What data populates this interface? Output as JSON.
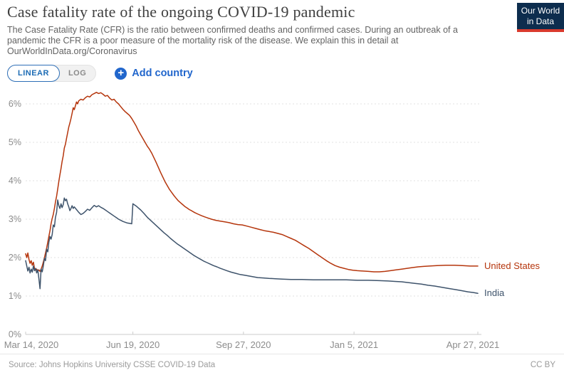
{
  "header": {
    "title": "Case fatality rate of the ongoing COVID-19 pandemic",
    "subtitle": "The Case Fatality Rate (CFR) is the ratio between confirmed deaths and confirmed cases. During an outbreak of a pandemic the CFR is a poor measure of the mortality risk of the disease. We explain this in detail at OurWorldInData.org/Coronavirus",
    "logo": {
      "line1": "Our World",
      "line2": "in Data",
      "bg_color": "#0d2d4e",
      "accent_color": "#d93a2e"
    }
  },
  "controls": {
    "linear_label": "LINEAR",
    "log_label": "LOG",
    "active_scale": "LINEAR",
    "add_country_label": "Add country",
    "plus_icon": "+",
    "accent_blue": "#2166cc"
  },
  "footer": {
    "source": "Source: Johns Hopkins University CSSE COVID-19 Data",
    "license": "CC BY"
  },
  "chart_data": {
    "type": "line",
    "title": "Case fatality rate of the ongoing COVID-19 pandemic",
    "xlabel": "",
    "ylabel": "",
    "grid": "dashed-horizontal",
    "legend_position": "end-of-line",
    "x_axis": {
      "unit": "date (days since Mar 14, 2020)",
      "range_days": [
        0,
        409
      ],
      "ticks": [
        {
          "label": "Mar 14, 2020",
          "day": 0
        },
        {
          "label": "Jun 19, 2020",
          "day": 97
        },
        {
          "label": "Sep 27, 2020",
          "day": 197
        },
        {
          "label": "Jan 5, 2021",
          "day": 297
        },
        {
          "label": "Apr 27, 2021",
          "day": 409
        }
      ]
    },
    "y_axis": {
      "unit": "%",
      "range": [
        0,
        6.5
      ],
      "ticks": [
        {
          "label": "0%",
          "value": 0
        },
        {
          "label": "1%",
          "value": 1
        },
        {
          "label": "2%",
          "value": 2
        },
        {
          "label": "3%",
          "value": 3
        },
        {
          "label": "4%",
          "value": 4
        },
        {
          "label": "5%",
          "value": 5
        },
        {
          "label": "6%",
          "value": 6
        }
      ]
    },
    "series": [
      {
        "name": "United States",
        "color": "#b5350c",
        "peak_value_pct": 6.3,
        "end_value_pct": 1.8,
        "points": [
          [
            0,
            2.1
          ],
          [
            1,
            2.0
          ],
          [
            2,
            2.12
          ],
          [
            3,
            1.95
          ],
          [
            4,
            1.85
          ],
          [
            5,
            1.92
          ],
          [
            6,
            1.8
          ],
          [
            7,
            1.88
          ],
          [
            8,
            1.72
          ],
          [
            9,
            1.67
          ],
          [
            10,
            1.7
          ],
          [
            11,
            1.65
          ],
          [
            12,
            1.68
          ],
          [
            13,
            1.64
          ],
          [
            14,
            1.7
          ],
          [
            15,
            1.78
          ],
          [
            16,
            1.88
          ],
          [
            17,
            2.0
          ],
          [
            18,
            2.12
          ],
          [
            19,
            2.25
          ],
          [
            20,
            2.4
          ],
          [
            21,
            2.55
          ],
          [
            22,
            2.7
          ],
          [
            23,
            2.88
          ],
          [
            24,
            3.02
          ],
          [
            25,
            3.12
          ],
          [
            26,
            3.28
          ],
          [
            27,
            3.45
          ],
          [
            28,
            3.6
          ],
          [
            29,
            3.78
          ],
          [
            30,
            3.98
          ],
          [
            31,
            4.15
          ],
          [
            32,
            4.32
          ],
          [
            33,
            4.5
          ],
          [
            34,
            4.65
          ],
          [
            35,
            4.85
          ],
          [
            36,
            4.95
          ],
          [
            37,
            5.1
          ],
          [
            38,
            5.25
          ],
          [
            39,
            5.4
          ],
          [
            40,
            5.5
          ],
          [
            41,
            5.62
          ],
          [
            42,
            5.75
          ],
          [
            43,
            5.9
          ],
          [
            44,
            5.85
          ],
          [
            45,
            5.95
          ],
          [
            46,
            6.05
          ],
          [
            47,
            6.0
          ],
          [
            48,
            6.08
          ],
          [
            50,
            6.12
          ],
          [
            52,
            6.1
          ],
          [
            54,
            6.16
          ],
          [
            56,
            6.2
          ],
          [
            58,
            6.18
          ],
          [
            60,
            6.24
          ],
          [
            62,
            6.27
          ],
          [
            64,
            6.3
          ],
          [
            66,
            6.27
          ],
          [
            68,
            6.29
          ],
          [
            70,
            6.25
          ],
          [
            72,
            6.2
          ],
          [
            74,
            6.22
          ],
          [
            76,
            6.15
          ],
          [
            78,
            6.1
          ],
          [
            80,
            6.12
          ],
          [
            82,
            6.05
          ],
          [
            84,
            6.0
          ],
          [
            86,
            5.93
          ],
          [
            88,
            5.86
          ],
          [
            90,
            5.8
          ],
          [
            92,
            5.75
          ],
          [
            94,
            5.7
          ],
          [
            96,
            5.62
          ],
          [
            98,
            5.52
          ],
          [
            100,
            5.42
          ],
          [
            102,
            5.3
          ],
          [
            104,
            5.2
          ],
          [
            106,
            5.1
          ],
          [
            108,
            5.0
          ],
          [
            110,
            4.9
          ],
          [
            112,
            4.82
          ],
          [
            114,
            4.72
          ],
          [
            116,
            4.6
          ],
          [
            118,
            4.48
          ],
          [
            120,
            4.35
          ],
          [
            122,
            4.22
          ],
          [
            124,
            4.1
          ],
          [
            126,
            3.98
          ],
          [
            128,
            3.88
          ],
          [
            130,
            3.78
          ],
          [
            132,
            3.7
          ],
          [
            134,
            3.62
          ],
          [
            136,
            3.55
          ],
          [
            138,
            3.48
          ],
          [
            140,
            3.43
          ],
          [
            142,
            3.38
          ],
          [
            144,
            3.33
          ],
          [
            146,
            3.29
          ],
          [
            148,
            3.25
          ],
          [
            150,
            3.22
          ],
          [
            153,
            3.17
          ],
          [
            156,
            3.13
          ],
          [
            159,
            3.09
          ],
          [
            162,
            3.06
          ],
          [
            165,
            3.03
          ],
          [
            168,
            3.0
          ],
          [
            172,
            2.97
          ],
          [
            176,
            2.95
          ],
          [
            180,
            2.93
          ],
          [
            184,
            2.91
          ],
          [
            188,
            2.88
          ],
          [
            192,
            2.86
          ],
          [
            196,
            2.85
          ],
          [
            200,
            2.82
          ],
          [
            204,
            2.79
          ],
          [
            208,
            2.76
          ],
          [
            212,
            2.73
          ],
          [
            216,
            2.7
          ],
          [
            220,
            2.68
          ],
          [
            224,
            2.66
          ],
          [
            228,
            2.63
          ],
          [
            232,
            2.6
          ],
          [
            236,
            2.55
          ],
          [
            240,
            2.5
          ],
          [
            244,
            2.45
          ],
          [
            248,
            2.38
          ],
          [
            252,
            2.31
          ],
          [
            256,
            2.24
          ],
          [
            260,
            2.16
          ],
          [
            264,
            2.08
          ],
          [
            268,
            2.0
          ],
          [
            272,
            1.92
          ],
          [
            276,
            1.85
          ],
          [
            280,
            1.79
          ],
          [
            284,
            1.75
          ],
          [
            288,
            1.72
          ],
          [
            292,
            1.69
          ],
          [
            296,
            1.67
          ],
          [
            300,
            1.66
          ],
          [
            305,
            1.65
          ],
          [
            310,
            1.64
          ],
          [
            315,
            1.63
          ],
          [
            320,
            1.63
          ],
          [
            325,
            1.64
          ],
          [
            330,
            1.66
          ],
          [
            335,
            1.68
          ],
          [
            340,
            1.7
          ],
          [
            345,
            1.72
          ],
          [
            350,
            1.74
          ],
          [
            355,
            1.76
          ],
          [
            360,
            1.77
          ],
          [
            365,
            1.78
          ],
          [
            372,
            1.79
          ],
          [
            380,
            1.8
          ],
          [
            388,
            1.8
          ],
          [
            395,
            1.79
          ],
          [
            402,
            1.78
          ],
          [
            409,
            1.78
          ]
        ]
      },
      {
        "name": "India",
        "color": "#3e536b",
        "peak_value_pct": 3.55,
        "end_value_pct": 1.1,
        "points": [
          [
            0,
            1.92
          ],
          [
            1,
            1.78
          ],
          [
            2,
            1.65
          ],
          [
            3,
            1.75
          ],
          [
            4,
            1.6
          ],
          [
            5,
            1.7
          ],
          [
            6,
            1.62
          ],
          [
            7,
            1.78
          ],
          [
            8,
            1.66
          ],
          [
            9,
            1.72
          ],
          [
            10,
            1.6
          ],
          [
            11,
            1.68
          ],
          [
            12,
            1.45
          ],
          [
            13,
            1.19
          ],
          [
            14,
            1.7
          ],
          [
            15,
            1.63
          ],
          [
            16,
            1.78
          ],
          [
            17,
            1.98
          ],
          [
            18,
            1.92
          ],
          [
            19,
            2.22
          ],
          [
            20,
            2.15
          ],
          [
            21,
            2.4
          ],
          [
            22,
            2.55
          ],
          [
            23,
            2.48
          ],
          [
            24,
            2.6
          ],
          [
            25,
            2.85
          ],
          [
            26,
            2.8
          ],
          [
            27,
            3.05
          ],
          [
            28,
            3.18
          ],
          [
            29,
            3.5
          ],
          [
            30,
            3.35
          ],
          [
            31,
            3.28
          ],
          [
            32,
            3.4
          ],
          [
            33,
            3.3
          ],
          [
            34,
            3.38
          ],
          [
            35,
            3.55
          ],
          [
            36,
            3.48
          ],
          [
            37,
            3.52
          ],
          [
            38,
            3.4
          ],
          [
            39,
            3.32
          ],
          [
            40,
            3.22
          ],
          [
            41,
            3.28
          ],
          [
            42,
            3.35
          ],
          [
            43,
            3.28
          ],
          [
            44,
            3.32
          ],
          [
            46,
            3.25
          ],
          [
            48,
            3.18
          ],
          [
            50,
            3.12
          ],
          [
            52,
            3.15
          ],
          [
            54,
            3.2
          ],
          [
            56,
            3.26
          ],
          [
            58,
            3.23
          ],
          [
            60,
            3.3
          ],
          [
            62,
            3.36
          ],
          [
            64,
            3.32
          ],
          [
            66,
            3.35
          ],
          [
            68,
            3.31
          ],
          [
            70,
            3.28
          ],
          [
            72,
            3.24
          ],
          [
            74,
            3.2
          ],
          [
            76,
            3.16
          ],
          [
            78,
            3.12
          ],
          [
            80,
            3.08
          ],
          [
            82,
            3.04
          ],
          [
            84,
            3.0
          ],
          [
            86,
            2.97
          ],
          [
            88,
            2.94
          ],
          [
            90,
            2.92
          ],
          [
            92,
            2.9
          ],
          [
            94,
            2.89
          ],
          [
            96,
            2.88
          ],
          [
            97,
            3.4
          ],
          [
            98,
            3.38
          ],
          [
            100,
            3.34
          ],
          [
            102,
            3.29
          ],
          [
            104,
            3.24
          ],
          [
            107,
            3.15
          ],
          [
            110,
            3.05
          ],
          [
            113,
            2.97
          ],
          [
            116,
            2.89
          ],
          [
            119,
            2.81
          ],
          [
            122,
            2.73
          ],
          [
            125,
            2.65
          ],
          [
            128,
            2.58
          ],
          [
            131,
            2.5
          ],
          [
            134,
            2.43
          ],
          [
            137,
            2.36
          ],
          [
            140,
            2.3
          ],
          [
            143,
            2.24
          ],
          [
            146,
            2.18
          ],
          [
            149,
            2.12
          ],
          [
            152,
            2.06
          ],
          [
            155,
            2.01
          ],
          [
            158,
            1.96
          ],
          [
            161,
            1.91
          ],
          [
            164,
            1.87
          ],
          [
            167,
            1.83
          ],
          [
            170,
            1.79
          ],
          [
            173,
            1.76
          ],
          [
            176,
            1.72
          ],
          [
            179,
            1.69
          ],
          [
            182,
            1.66
          ],
          [
            186,
            1.62
          ],
          [
            190,
            1.59
          ],
          [
            194,
            1.56
          ],
          [
            198,
            1.54
          ],
          [
            202,
            1.52
          ],
          [
            206,
            1.5
          ],
          [
            210,
            1.48
          ],
          [
            215,
            1.47
          ],
          [
            220,
            1.46
          ],
          [
            226,
            1.45
          ],
          [
            232,
            1.44
          ],
          [
            240,
            1.43
          ],
          [
            250,
            1.43
          ],
          [
            260,
            1.42
          ],
          [
            270,
            1.42
          ],
          [
            280,
            1.42
          ],
          [
            290,
            1.42
          ],
          [
            300,
            1.41
          ],
          [
            310,
            1.41
          ],
          [
            320,
            1.4
          ],
          [
            328,
            1.39
          ],
          [
            334,
            1.38
          ],
          [
            340,
            1.37
          ],
          [
            346,
            1.35
          ],
          [
            352,
            1.33
          ],
          [
            358,
            1.31
          ],
          [
            364,
            1.28
          ],
          [
            370,
            1.26
          ],
          [
            376,
            1.23
          ],
          [
            382,
            1.2
          ],
          [
            388,
            1.17
          ],
          [
            394,
            1.14
          ],
          [
            400,
            1.11
          ],
          [
            405,
            1.09
          ],
          [
            409,
            1.07
          ]
        ]
      }
    ]
  }
}
